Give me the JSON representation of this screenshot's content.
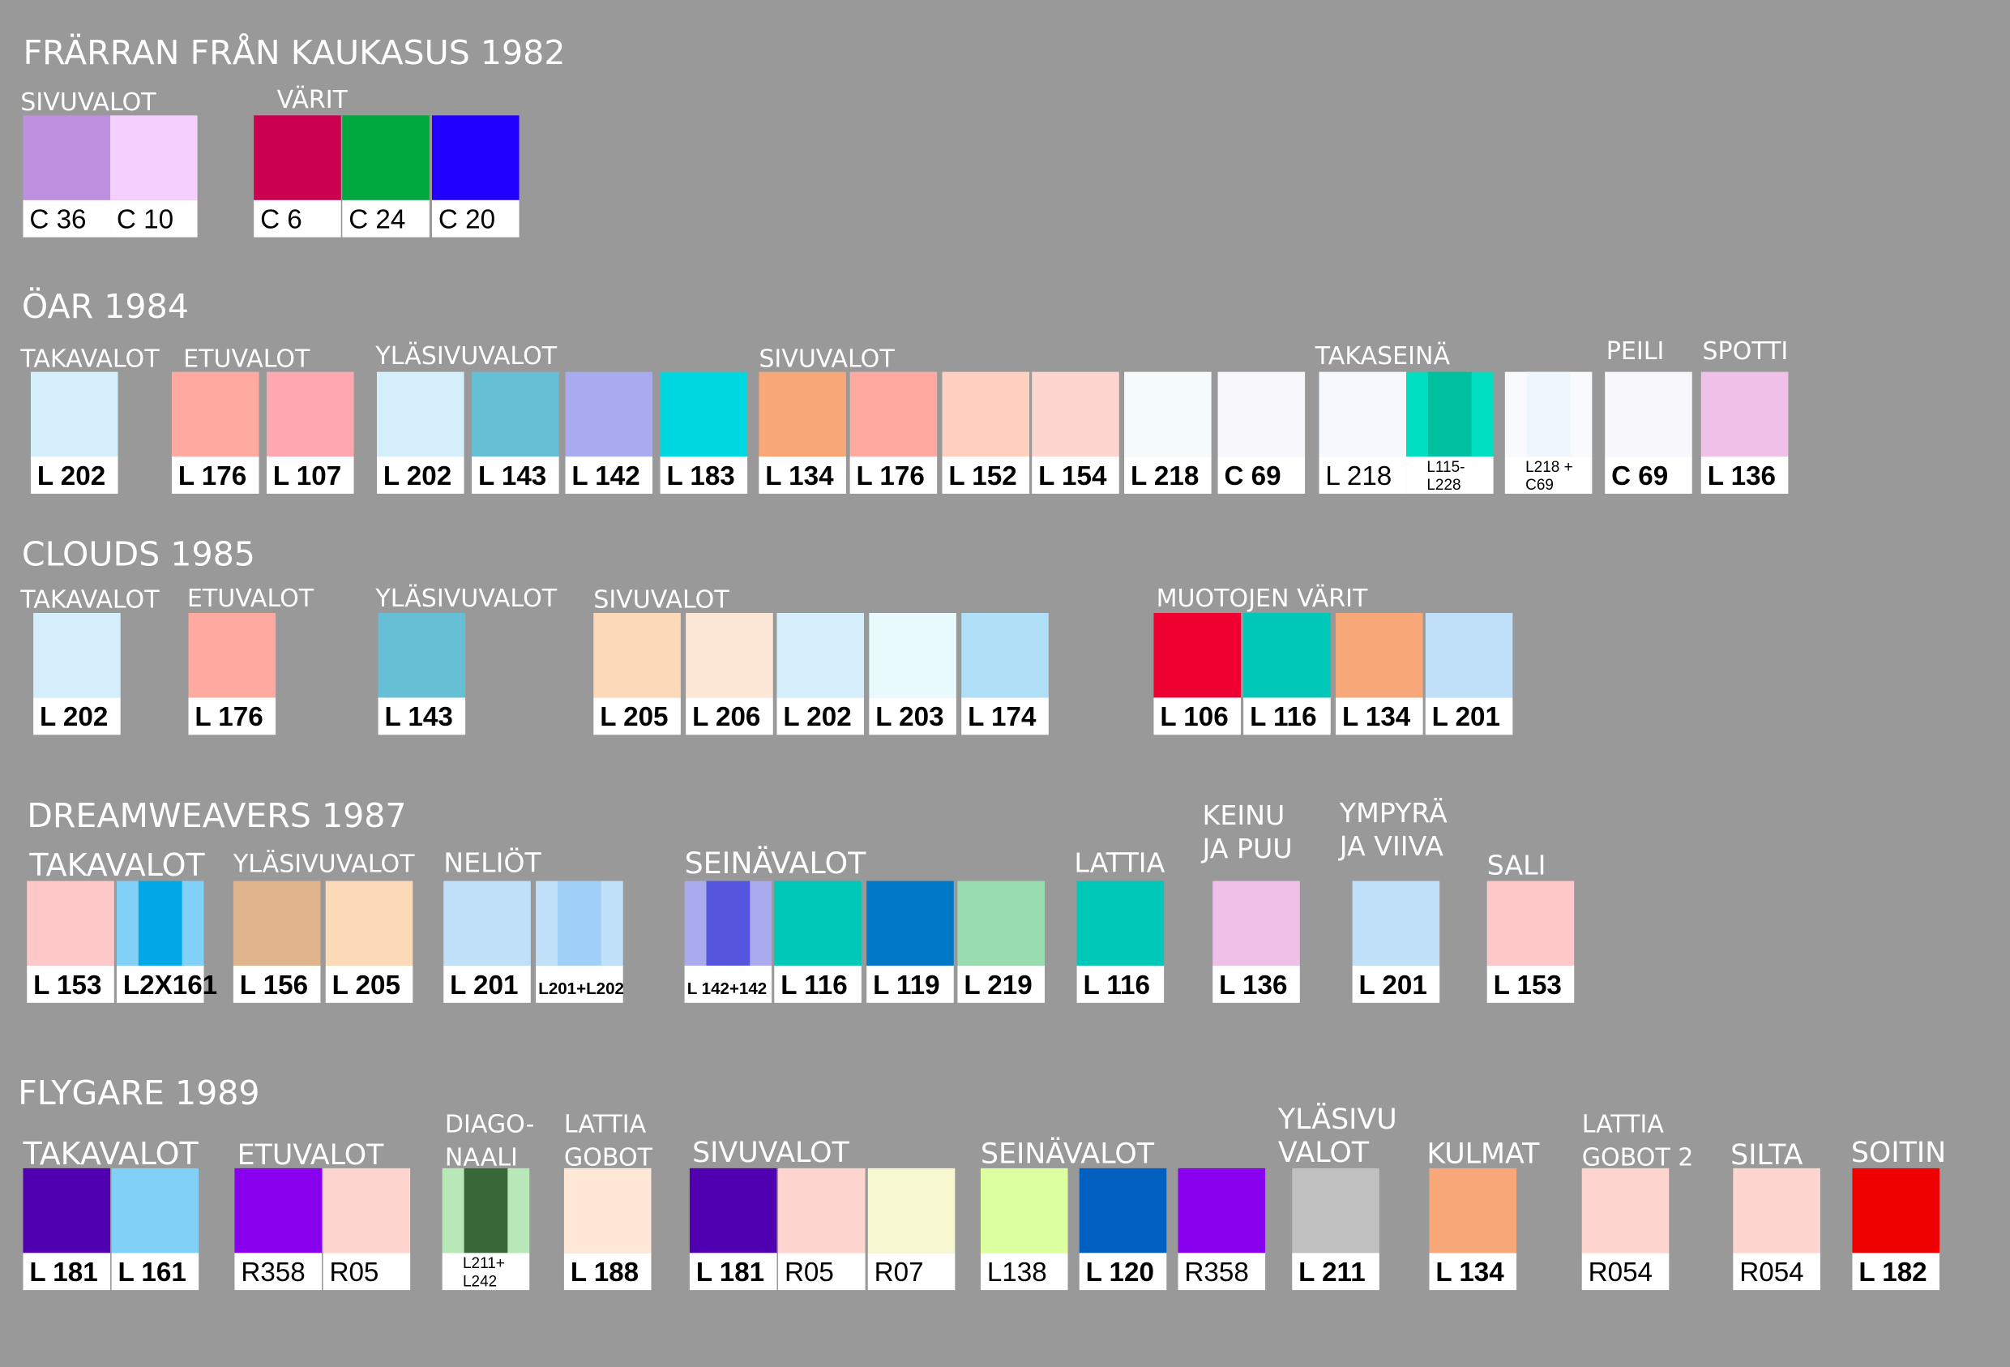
{
  "sections": [
    {
      "title": "FRÄRRAN FRÅN KAUKASUS 1982",
      "groups": [
        {
          "label": "SIVUVALOT",
          "swatches": [
            {
              "code": "C 36",
              "color": "#c090e0"
            },
            {
              "code": "C 10",
              "color": "#f5d0ff"
            }
          ]
        },
        {
          "label": "VÄRIT",
          "swatches": [
            {
              "code": "C 6",
              "color": "#cc0050"
            },
            {
              "code": "C 24",
              "color": "#00a840"
            },
            {
              "code": "C 20",
              "color": "#2000ff"
            }
          ]
        }
      ]
    },
    {
      "title": "ÖAR 1984",
      "groups": [
        {
          "label": "TAKAVALOT",
          "swatches": [
            {
              "code": "L 202",
              "color": "#d5eefc"
            }
          ]
        },
        {
          "label": "ETUVALOT",
          "swatches": [
            {
              "code": "L 176",
              "color": "#ffaaa0"
            },
            {
              "code": "L 107",
              "color": "#ffa8b0"
            }
          ]
        },
        {
          "label": "YLÄSIVUVALOT",
          "swatches": [
            {
              "code": "L 202",
              "color": "#d5eefc"
            },
            {
              "code": "L 143",
              "color": "#66c0d5"
            },
            {
              "code": "L 142",
              "color": "#aaaaee"
            },
            {
              "code": "L 183",
              "color": "#00d8e0"
            }
          ]
        },
        {
          "label": "SIVUVALOT",
          "swatches": [
            {
              "code": "L 134",
              "color": "#f8a878"
            },
            {
              "code": "L 176",
              "color": "#ffaaa0"
            },
            {
              "code": "L 152",
              "color": "#ffd0c0"
            },
            {
              "code": "L 154",
              "color": "#ffd5d0"
            },
            {
              "code": "L 218",
              "color": "#f5fafa"
            },
            {
              "code": "C 69",
              "color": "#f8f8fc"
            }
          ]
        },
        {
          "label": "TAKASEINÄ",
          "swatches": [
            {
              "code": "L 218",
              "color": "#f5f8fc"
            },
            {
              "code": [
                "L115-",
                "L228"
              ],
              "color": "#00e0c0",
              "inner": "#00c0a0"
            },
            {
              "code": [
                "L218 +",
                "C69"
              ],
              "color": "#f8fafc",
              "inner": "#eef8fc"
            }
          ]
        },
        {
          "label": "PEILI",
          "swatches": [
            {
              "code": "C 69",
              "color": "#f8f8fc"
            }
          ]
        },
        {
          "label": "SPOTTI",
          "swatches": [
            {
              "code": "L 136",
              "color": "#f0c0e8"
            }
          ]
        }
      ]
    },
    {
      "title": "CLOUDS 1985",
      "groups": [
        {
          "label": "TAKAVALOT",
          "swatches": [
            {
              "code": "L 202",
              "color": "#d5eefc"
            }
          ]
        },
        {
          "label": "ETUVALOT",
          "swatches": [
            {
              "code": "L 176",
              "color": "#ffaaa0"
            }
          ]
        },
        {
          "label": "YLÄSIVUVALOT",
          "swatches": [
            {
              "code": "L 143",
              "color": "#66c0d5"
            }
          ]
        },
        {
          "label": "SIVUVALOT",
          "swatches": [
            {
              "code": "L 205",
              "color": "#fcdab8"
            },
            {
              "code": "L 206",
              "color": "#fde8d8"
            },
            {
              "code": "L 202",
              "color": "#d5eefc"
            },
            {
              "code": "L 203",
              "color": "#e8fafc"
            },
            {
              "code": "L 174",
              "color": "#b0e0f8"
            }
          ]
        },
        {
          "label": "MUOTOJEN VÄRIT",
          "swatches": [
            {
              "code": "L 106",
              "color": "#ee0030"
            },
            {
              "code": "L 116",
              "color": "#00c8b8"
            },
            {
              "code": "L 134",
              "color": "#f8a878"
            },
            {
              "code": "L 201",
              "color": "#c0e0fa"
            }
          ]
        }
      ]
    },
    {
      "title": "DREAMWEAVERS 1987",
      "groups": [
        {
          "label": "TAKAVALOT",
          "swatches": [
            {
              "code": "L 153",
              "color": "#ffc8c8"
            },
            {
              "code": "L2X161",
              "color": "#80d0f8",
              "inner": "#00a8e8"
            }
          ]
        },
        {
          "label": "YLÄSIVUVALOT",
          "swatches": [
            {
              "code": "L 156",
              "color": "#e0b48c"
            },
            {
              "code": "L 205",
              "color": "#fcdab8"
            }
          ]
        },
        {
          "label": "NELIÖT",
          "swatches": [
            {
              "code": "L 201",
              "color": "#c0e0fa"
            },
            {
              "code": "L201+L202",
              "color": "#c0e0fa",
              "inner": "#a0d0f8"
            }
          ]
        },
        {
          "label": "SEINÄVALOT",
          "swatches": [
            {
              "code": "L 142+142",
              "color": "#aaaaee",
              "inner": "#5555dd"
            },
            {
              "code": "L 116",
              "color": "#00c8b8"
            },
            {
              "code": "L 119",
              "color": "#0078c8"
            },
            {
              "code": "L 219",
              "color": "#98dcb0"
            }
          ]
        },
        {
          "label": "LATTIA",
          "swatches": [
            {
              "code": "L 116",
              "color": "#00c8b8"
            }
          ]
        },
        {
          "label": [
            "KEINU",
            "JA PUU"
          ],
          "swatches": [
            {
              "code": "L 136",
              "color": "#f0c0e8"
            }
          ]
        },
        {
          "label": [
            "YMPYRÄ",
            "JA VIIVA"
          ],
          "swatches": [
            {
              "code": "L 201",
              "color": "#c0e0fa"
            }
          ]
        },
        {
          "label": "SALI",
          "swatches": [
            {
              "code": "L 153",
              "color": "#ffc8c8"
            }
          ]
        }
      ]
    },
    {
      "title": "FLYGARE 1989",
      "groups": [
        {
          "label": "TAKAVALOT",
          "swatches": [
            {
              "code": "L 181",
              "color": "#5000b0"
            },
            {
              "code": "L 161",
              "color": "#80d0f8"
            }
          ]
        },
        {
          "label": "ETUVALOT",
          "swatches": [
            {
              "code": "R358",
              "color": "#8800ee"
            },
            {
              "code": "R05",
              "color": "#ffd5d0"
            }
          ]
        },
        {
          "label": [
            "DIAGO-",
            "NAALI"
          ],
          "swatches": [
            {
              "code": [
                "L211+",
                "L242"
              ],
              "color": "#b8e8b8",
              "inner": "#386838"
            }
          ]
        },
        {
          "label": [
            "LATTIA",
            "GOBOT"
          ],
          "swatches": [
            {
              "code": "L 188",
              "color": "#ffe8d8"
            }
          ]
        },
        {
          "label": "SIVUVALOT",
          "swatches": [
            {
              "code": "L 181",
              "color": "#5000b0"
            },
            {
              "code": "R05",
              "color": "#ffd5d0"
            },
            {
              "code": "R07",
              "color": "#f8f8d0"
            }
          ]
        },
        {
          "label": "SEINÄVALOT",
          "swatches": [
            {
              "code": "L138",
              "color": "#dcffa0"
            },
            {
              "code": "L 120",
              "color": "#0060c0"
            },
            {
              "code": "R358",
              "color": "#8800ee"
            }
          ]
        },
        {
          "label": [
            "YLÄSIVU",
            "VALOT"
          ],
          "swatches": [
            {
              "code": "L 211",
              "color": "#c0c0c0"
            }
          ]
        },
        {
          "label": "KULMAT",
          "swatches": [
            {
              "code": "L 134",
              "color": "#f8a878"
            }
          ]
        },
        {
          "label": [
            "LATTIA",
            "GOBOT 2"
          ],
          "swatches": [
            {
              "code": "R054",
              "color": "#ffd5d0"
            }
          ]
        },
        {
          "label": "SILTA",
          "swatches": [
            {
              "code": "R054",
              "color": "#ffd5d0"
            }
          ]
        },
        {
          "label": "SOITIN",
          "swatches": [
            {
              "code": "L 182",
              "color": "#ee0000"
            }
          ]
        }
      ]
    }
  ]
}
